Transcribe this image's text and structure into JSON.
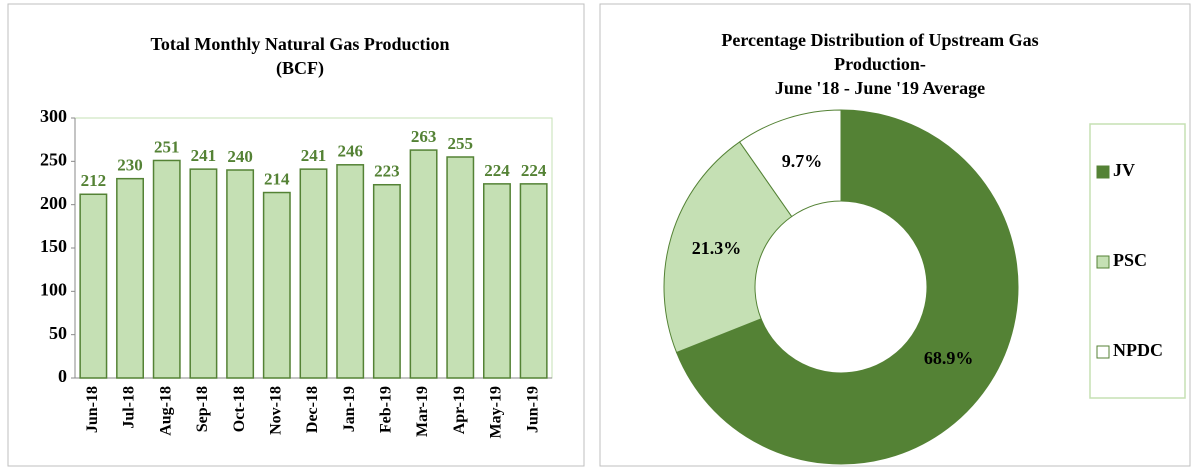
{
  "chart_data": [
    {
      "type": "bar",
      "title": [
        "Total Monthly Natural Gas Production",
        "(BCF)"
      ],
      "categories": [
        "Jun-18",
        "Jul-18",
        "Aug-18",
        "Sep-18",
        "Oct-18",
        "Nov-18",
        "Dec-18",
        "Jan-19",
        "Feb-19",
        "Mar-19",
        "Apr-19",
        "May-19",
        "Jun-19"
      ],
      "values": [
        212,
        230,
        251,
        241,
        240,
        214,
        241,
        246,
        223,
        263,
        255,
        224,
        224
      ],
      "color": "#c5e0b4",
      "edge_color": "#548235",
      "label_color": "#548235",
      "ylim": [
        0,
        300
      ],
      "yticks": [
        0,
        50,
        100,
        150,
        200,
        250,
        300
      ]
    },
    {
      "type": "doughnut",
      "title": [
        "Percentage Distribution of Upstream Gas",
        "Production-",
        "June '18 - June '19 Average"
      ],
      "categories": [
        "JV",
        "PSC",
        "NPDC"
      ],
      "values": [
        68.9,
        21.3,
        9.7
      ],
      "value_labels": [
        "68.9%",
        "21.3%",
        "9.7%"
      ],
      "colors": [
        "#548235",
        "#c5e0b4",
        "#ffffff"
      ],
      "legend": "right"
    }
  ]
}
